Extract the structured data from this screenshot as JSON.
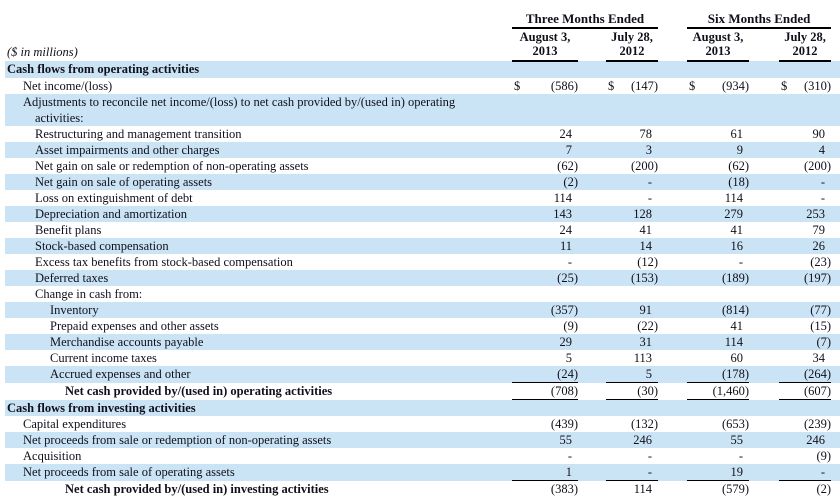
{
  "colors": {
    "stripe": "#cbe4f5",
    "rule": "#000000",
    "text": "#10101a",
    "background": "#ffffff"
  },
  "table": {
    "units_label": "($ in millions)",
    "currency_symbol": "$",
    "col_groups": [
      {
        "label": "Three Months Ended",
        "cols": [
          {
            "line1": "August 3,",
            "line2": "2013"
          },
          {
            "line1": "July 28,",
            "line2": "2012"
          }
        ]
      },
      {
        "label": "Six Months Ended",
        "cols": [
          {
            "line1": "August 3,",
            "line2": "2013"
          },
          {
            "line1": "July 28,",
            "line2": "2012"
          }
        ]
      }
    ],
    "rows": [
      {
        "label": "Cash flows from operating activities",
        "indent": 0,
        "bold": true,
        "shaded": true,
        "values": [
          "",
          "",
          "",
          ""
        ]
      },
      {
        "label": "Net income/(loss)",
        "indent": 1,
        "shaded": false,
        "dollar": true,
        "values": [
          "(586)",
          "(147)",
          "(934)",
          "(310)"
        ]
      },
      {
        "label": "Adjustments to reconcile net income/(loss) to net cash provided by/(used in) operating",
        "label2": "activities:",
        "indent": 1,
        "shaded": true,
        "values": [
          "",
          "",
          "",
          ""
        ]
      },
      {
        "label": "Restructuring and management transition",
        "indent": 2,
        "shaded": false,
        "values": [
          "24",
          "78",
          "61",
          "90"
        ]
      },
      {
        "label": "Asset impairments and other charges",
        "indent": 2,
        "shaded": true,
        "values": [
          "7",
          "3",
          "9",
          "4"
        ]
      },
      {
        "label": "Net gain on sale or redemption of non-operating assets",
        "indent": 2,
        "shaded": false,
        "values": [
          "(62)",
          "(200)",
          "(62)",
          "(200)"
        ]
      },
      {
        "label": "Net gain on sale of operating assets",
        "indent": 2,
        "shaded": true,
        "values": [
          "(2)",
          "-",
          "(18)",
          "-"
        ]
      },
      {
        "label": "Loss on extinguishment of debt",
        "indent": 2,
        "shaded": false,
        "values": [
          "114",
          "-",
          "114",
          "-"
        ]
      },
      {
        "label": "Depreciation and amortization",
        "indent": 2,
        "shaded": true,
        "values": [
          "143",
          "128",
          "279",
          "253"
        ]
      },
      {
        "label": "Benefit plans",
        "indent": 2,
        "shaded": false,
        "values": [
          "24",
          "41",
          "41",
          "79"
        ]
      },
      {
        "label": "Stock-based compensation",
        "indent": 2,
        "shaded": true,
        "values": [
          "11",
          "14",
          "16",
          "26"
        ]
      },
      {
        "label": "Excess tax benefits from stock-based compensation",
        "indent": 2,
        "shaded": false,
        "values": [
          "-",
          "(12)",
          "-",
          "(23)"
        ]
      },
      {
        "label": "Deferred taxes",
        "indent": 2,
        "shaded": true,
        "values": [
          "(25)",
          "(153)",
          "(189)",
          "(197)"
        ]
      },
      {
        "label": "Change in cash from:",
        "indent": 2,
        "shaded": false,
        "values": [
          "",
          "",
          "",
          ""
        ]
      },
      {
        "label": "Inventory",
        "indent": 3,
        "shaded": true,
        "values": [
          "(357)",
          "91",
          "(814)",
          "(77)"
        ]
      },
      {
        "label": "Prepaid expenses and other assets",
        "indent": 3,
        "shaded": false,
        "values": [
          "(9)",
          "(22)",
          "41",
          "(15)"
        ]
      },
      {
        "label": "Merchandise accounts payable",
        "indent": 3,
        "shaded": true,
        "values": [
          "29",
          "31",
          "114",
          "(7)"
        ]
      },
      {
        "label": "Current income taxes",
        "indent": 3,
        "shaded": false,
        "values": [
          "5",
          "113",
          "60",
          "34"
        ]
      },
      {
        "label": "Accrued expenses and other",
        "indent": 3,
        "shaded": true,
        "values": [
          "(24)",
          "5",
          "(178)",
          "(264)"
        ]
      },
      {
        "label": "Net cash provided by/(used in) operating activities",
        "indent": 4,
        "bold": true,
        "shaded": false,
        "rule_top": true,
        "rule_bottom": true,
        "values": [
          "(708)",
          "(30)",
          "(1,460)",
          "(607)"
        ]
      },
      {
        "label": "Cash flows from investing activities",
        "indent": 0,
        "bold": true,
        "shaded": true,
        "values": [
          "",
          "",
          "",
          ""
        ]
      },
      {
        "label": "Capital expenditures",
        "indent": 1,
        "shaded": false,
        "values": [
          "(439)",
          "(132)",
          "(653)",
          "(239)"
        ]
      },
      {
        "label": "Net proceeds from sale or redemption of non-operating assets",
        "indent": 1,
        "shaded": true,
        "values": [
          "55",
          "246",
          "55",
          "246"
        ]
      },
      {
        "label": "Acquisition",
        "indent": 1,
        "shaded": false,
        "values": [
          "-",
          "-",
          "-",
          "(9)"
        ]
      },
      {
        "label": "Net proceeds from sale of operating assets",
        "indent": 1,
        "shaded": true,
        "values": [
          "1",
          "-",
          "19",
          "-"
        ]
      },
      {
        "label": "Net cash provided by/(used in) investing activities",
        "indent": 4,
        "bold": true,
        "shaded": false,
        "rule_top": true,
        "values": [
          "(383)",
          "114",
          "(579)",
          "(2)"
        ]
      }
    ]
  }
}
